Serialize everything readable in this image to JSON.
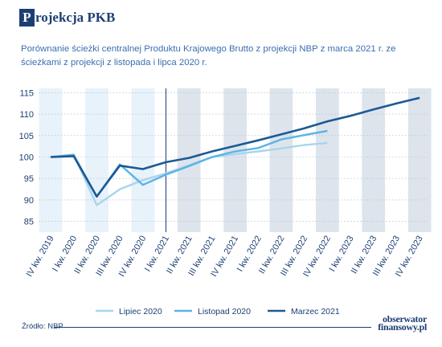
{
  "header": {
    "title_initial": "P",
    "title_rest": "rojekcja PKB",
    "subtitle": "Porównanie ścieżki centralnej Produktu Krajowego Brutto z projekcji NBP z marca 2021 r. ze ścieżkami z projekcji z listopada i lipca 2020 r."
  },
  "footer": {
    "source": "Źródło: NBP",
    "logo_line1": "obserwator",
    "logo_line2": "finansowy.pl"
  },
  "colors": {
    "lipiec": "#a9d4ee",
    "listopad": "#5ab4e5",
    "marzec": "#1c5a93",
    "forecast_band": "#dde4ec",
    "history_band": "#e8f2fa",
    "divider": "#1c3f73"
  },
  "chart_data": {
    "type": "line",
    "categories": [
      "IV kw. 2019",
      "I kw. 2020",
      "II kw. 2020",
      "III kw. 2020",
      "IV kw. 2020",
      "I kw. 2021",
      "II kw. 2021",
      "III kw. 2021",
      "IV kw. 2021",
      "I kw. 2022",
      "II kw. 2022",
      "III kw. 2022",
      "IV kw. 2022",
      "I kw. 2023",
      "II kw. 2023",
      "III kw. 2023",
      "IV kw. 2023"
    ],
    "series": [
      {
        "name": "Lipiec 2020",
        "key": "lipiec",
        "values": [
          100.0,
          100.6,
          88.8,
          92.5,
          94.6,
          96.2,
          98.1,
          100.0,
          100.7,
          101.3,
          102.0,
          102.8,
          103.3,
          null,
          null,
          null,
          null
        ]
      },
      {
        "name": "Listopad 2020",
        "key": "listopad",
        "values": [
          100.0,
          100.5,
          90.8,
          98.3,
          93.5,
          95.9,
          97.9,
          100.0,
          101.3,
          102.1,
          104.1,
          105.1,
          106.1,
          null,
          null,
          null,
          null
        ]
      },
      {
        "name": "Marzec 2021",
        "key": "marzec",
        "values": [
          100.0,
          100.2,
          90.8,
          98.0,
          97.2,
          98.8,
          99.8,
          101.3,
          102.6,
          103.9,
          105.3,
          106.7,
          108.3,
          109.6,
          111.1,
          112.5,
          113.8
        ]
      }
    ],
    "yticks": [
      85,
      90,
      95,
      100,
      105,
      110,
      115
    ],
    "ylim": [
      82.5,
      116
    ],
    "title": "Projekcja PKB",
    "xlabel": "",
    "ylabel": "",
    "forecast_start_index": 5,
    "grid": true,
    "legend_position": "bottom"
  }
}
